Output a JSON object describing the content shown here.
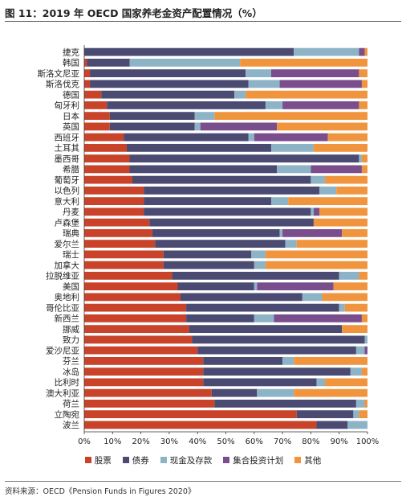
{
  "figure_title": "图 11：2019 年 OECD 国家养老金资产配置情况（%）",
  "source": "资料来源：OECD《Pension Funds in Figures 2020》",
  "chart_data": {
    "type": "bar",
    "orientation": "horizontal",
    "stacked": true,
    "title": "",
    "xlabel": "",
    "ylabel": "",
    "xlim": [
      0,
      100
    ],
    "x_ticks": [
      "0%",
      "10%",
      "20%",
      "30%",
      "40%",
      "50%",
      "60%",
      "70%",
      "80%",
      "90%",
      "100%"
    ],
    "legend_position": "bottom",
    "grid": false,
    "categories": [
      "捷克",
      "韩国",
      "斯洛文尼亚",
      "斯洛伐克",
      "德国",
      "匈牙利",
      "日本",
      "英国",
      "西班牙",
      "土耳其",
      "墨西哥",
      "希腊",
      "葡萄牙",
      "以色列",
      "意大利",
      "丹麦",
      "卢森堡",
      "瑞典",
      "爱尔兰",
      "瑞士",
      "加拿大",
      "拉脱维亚",
      "美国",
      "奥地利",
      "哥伦比亚",
      "新西兰",
      "挪威",
      "致力",
      "爱沙尼亚",
      "芬兰",
      "冰岛",
      "比利时",
      "澳大利亚",
      "荷兰",
      "立陶宛",
      "波兰"
    ],
    "series": [
      {
        "name": "股票",
        "color": "#c9432a",
        "values": [
          0,
          1,
          2,
          2,
          6,
          8,
          9,
          9,
          14,
          15,
          16,
          16,
          17,
          21,
          21,
          21,
          23,
          24,
          25,
          28,
          28,
          31,
          33,
          34,
          36,
          36,
          37,
          38,
          40,
          42,
          42,
          42,
          45,
          46,
          75,
          82
        ]
      },
      {
        "name": "债券",
        "color": "#4a4a72",
        "values": [
          74,
          15,
          55,
          56,
          47,
          56,
          30,
          30,
          44,
          51,
          81,
          52,
          63,
          62,
          45,
          59,
          58,
          45,
          46,
          31,
          32,
          59,
          27,
          43,
          54,
          24,
          54,
          61,
          56,
          28,
          52,
          40,
          16,
          50,
          20,
          11
        ]
      },
      {
        "name": "现金及存款",
        "color": "#8db3c7",
        "values": [
          23,
          39,
          9,
          11,
          4,
          6,
          7,
          2,
          2,
          15,
          1,
          12,
          5,
          6,
          6,
          1,
          0,
          1,
          4,
          5,
          4,
          7,
          1,
          7,
          2,
          7,
          0,
          1,
          3,
          4,
          4,
          3,
          13,
          3,
          2,
          7
        ]
      },
      {
        "name": "集合投资计划",
        "color": "#7a4d8c",
        "values": [
          2,
          0,
          31,
          29,
          0,
          27,
          0,
          27,
          26,
          0,
          0,
          18,
          0,
          0,
          0,
          2,
          0,
          21,
          0,
          0,
          0,
          0,
          27,
          0,
          0,
          31,
          0,
          0,
          1,
          0,
          0,
          0,
          0,
          0,
          0,
          0
        ]
      },
      {
        "name": "其他",
        "color": "#f0953e",
        "values": [
          1,
          45,
          3,
          2,
          43,
          3,
          54,
          32,
          14,
          19,
          2,
          2,
          15,
          11,
          28,
          17,
          19,
          9,
          25,
          36,
          36,
          3,
          12,
          16,
          8,
          2,
          9,
          0,
          0,
          26,
          2,
          15,
          26,
          1,
          3,
          0
        ]
      }
    ]
  }
}
